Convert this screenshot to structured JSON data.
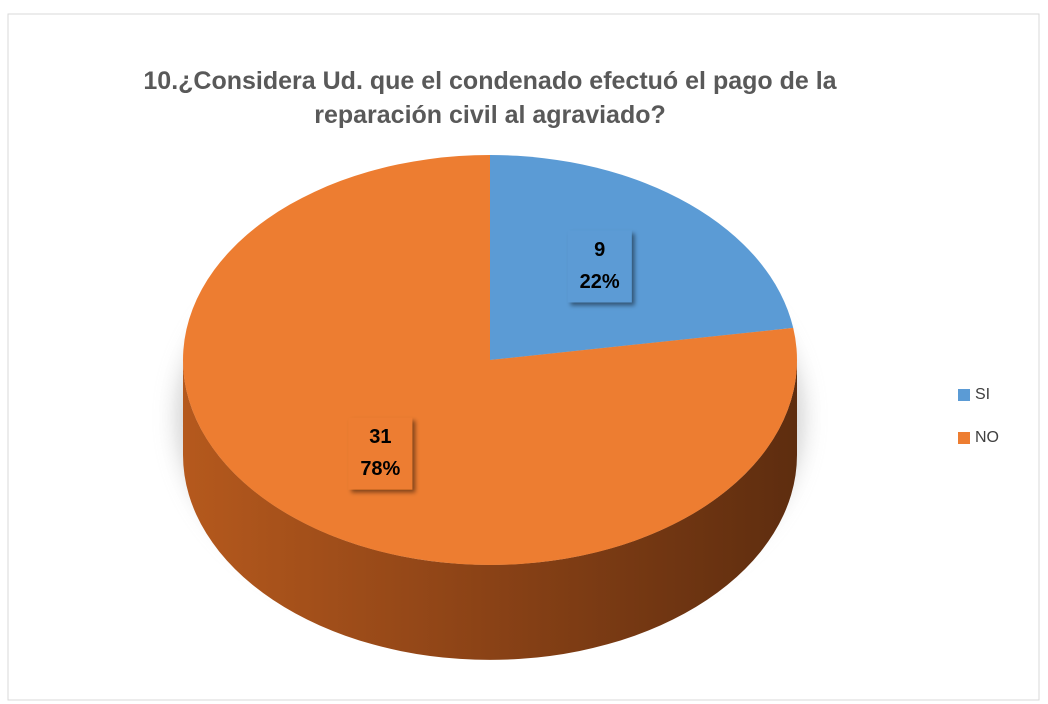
{
  "chart_data": {
    "type": "pie",
    "title": "10.¿Considera Ud. que el condenado efectuó el pago de la reparación civil al agraviado?",
    "categories": [
      "SI",
      "NO"
    ],
    "values": [
      9,
      31
    ],
    "percentages": [
      22,
      78
    ],
    "percentage_labels": [
      "22%",
      "78%"
    ],
    "colors": [
      "#5b9bd5",
      "#ed7d31"
    ],
    "legend": "right"
  }
}
